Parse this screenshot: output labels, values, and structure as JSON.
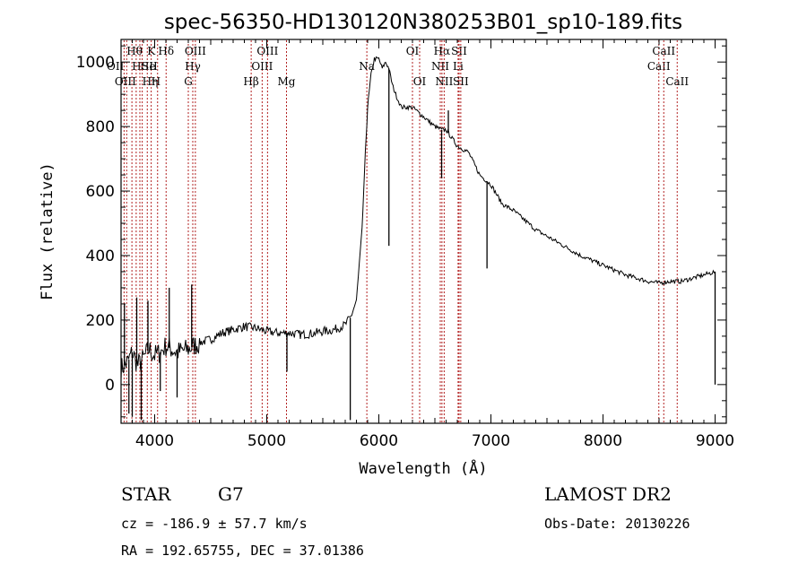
{
  "chart_data": {
    "type": "line",
    "title": "spec-56350-HD130120N380253B01_sp10-189.fits",
    "xlabel": "Wavelength (Å)",
    "ylabel": "Flux (relative)",
    "xlim": [
      3700,
      9100
    ],
    "ylim": [
      -120,
      1070
    ],
    "xticks": [
      4000,
      5000,
      6000,
      7000,
      8000,
      9000
    ],
    "yticks": [
      0,
      200,
      400,
      600,
      800,
      1000
    ],
    "series": [
      {
        "x": [
          3700,
          3760,
          3800,
          3850,
          3900,
          3950,
          4000,
          4050,
          4100,
          4200,
          4300,
          4400,
          4500,
          4600,
          4700,
          4800,
          4900,
          5000,
          5100,
          5200,
          5300,
          5400,
          5500,
          5600,
          5700,
          5750,
          5800,
          5850,
          5880,
          5900,
          5930,
          5960,
          6000,
          6030,
          6060,
          6090,
          6120,
          6150,
          6200,
          6300,
          6400,
          6500,
          6560,
          6600,
          6700,
          6800,
          6900,
          7000,
          7100,
          7200,
          7400,
          7600,
          7800,
          8000,
          8200,
          8400,
          8500,
          8600,
          8700,
          8800,
          8900,
          8950,
          9000
        ],
        "values": [
          50,
          70,
          100,
          60,
          80,
          110,
          90,
          100,
          120,
          100,
          110,
          130,
          140,
          160,
          170,
          180,
          175,
          165,
          160,
          160,
          155,
          158,
          165,
          170,
          185,
          210,
          260,
          480,
          720,
          860,
          960,
          1010,
          1010,
          980,
          1000,
          980,
          930,
          900,
          860,
          860,
          830,
          800,
          790,
          790,
          740,
          720,
          650,
          620,
          560,
          540,
          480,
          440,
          400,
          370,
          340,
          320,
          315,
          320,
          320,
          330,
          340,
          345,
          350
        ]
      }
    ],
    "spikes": [
      {
        "x": 3730,
        "y": 250
      },
      {
        "x": 3770,
        "y": -90
      },
      {
        "x": 3800,
        "y": -100
      },
      {
        "x": 3840,
        "y": 270
      },
      {
        "x": 3880,
        "y": -110
      },
      {
        "x": 3940,
        "y": 260
      },
      {
        "x": 4050,
        "y": -20
      },
      {
        "x": 4130,
        "y": 300
      },
      {
        "x": 4200,
        "y": -40
      },
      {
        "x": 4330,
        "y": 310
      },
      {
        "x": 5180,
        "y": 40
      },
      {
        "x": 5745,
        "y": -110
      },
      {
        "x": 6090,
        "y": 430
      },
      {
        "x": 6560,
        "y": 640
      },
      {
        "x": 6620,
        "y": 850
      },
      {
        "x": 6965,
        "y": 360
      },
      {
        "x": 9000,
        "y": 0
      }
    ],
    "spectral_lines": [
      {
        "x": 3727,
        "label": "OII",
        "row": 1,
        "align": "end"
      },
      {
        "x": 3750,
        "label": "Hθ",
        "row": 0,
        "align": "start"
      },
      {
        "x": 3797,
        "label": "H",
        "row": 1,
        "align": "start"
      },
      {
        "x": 3835,
        "label": "OIII",
        "row": 2,
        "align": "end"
      },
      {
        "x": 3868,
        "label": "He",
        "row": 1,
        "align": "start"
      },
      {
        "x": 3889,
        "label": "Hη",
        "row": 2,
        "align": "start"
      },
      {
        "x": 3934,
        "label": "K",
        "row": 0,
        "align": "start"
      },
      {
        "x": 3969,
        "label": "H",
        "row": 2,
        "align": "start"
      },
      {
        "x": 4026,
        "label": "SII",
        "row": 1,
        "align": "end"
      },
      {
        "x": 4102,
        "label": "Hδ",
        "row": 0,
        "align": "middle"
      },
      {
        "x": 4300,
        "label": "G",
        "row": 2,
        "align": "middle"
      },
      {
        "x": 4340,
        "label": "Hγ",
        "row": 1,
        "align": "middle"
      },
      {
        "x": 4363,
        "label": "OIII",
        "row": 0,
        "align": "middle"
      },
      {
        "x": 4861,
        "label": "Hβ",
        "row": 2,
        "align": "middle"
      },
      {
        "x": 4959,
        "label": "OIII",
        "row": 1,
        "align": "middle"
      },
      {
        "x": 5007,
        "label": "OIII",
        "row": 0,
        "align": "middle"
      },
      {
        "x": 5176,
        "label": "Mg",
        "row": 2,
        "align": "middle"
      },
      {
        "x": 5893,
        "label": "Na",
        "row": 1,
        "align": "middle"
      },
      {
        "x": 6300,
        "label": "OI",
        "row": 0,
        "align": "middle"
      },
      {
        "x": 6364,
        "label": "OI",
        "row": 2,
        "align": "middle"
      },
      {
        "x": 6548,
        "label": "NII",
        "row": 1,
        "align": "middle"
      },
      {
        "x": 6563,
        "label": "Hα",
        "row": 0,
        "align": "middle"
      },
      {
        "x": 6583,
        "label": "NII",
        "row": 2,
        "align": "middle"
      },
      {
        "x": 6707,
        "label": "Li",
        "row": 1,
        "align": "middle"
      },
      {
        "x": 6716,
        "label": "SII",
        "row": 0,
        "align": "middle"
      },
      {
        "x": 6731,
        "label": "SII",
        "row": 2,
        "align": "middle"
      },
      {
        "x": 8498,
        "label": "CaII",
        "row": 1,
        "align": "middle"
      },
      {
        "x": 8542,
        "label": "CaII",
        "row": 0,
        "align": "middle"
      },
      {
        "x": 8662,
        "label": "CaII",
        "row": 2,
        "align": "middle"
      }
    ]
  },
  "info": {
    "object_class": "STAR",
    "subclass": "G7",
    "survey": "LAMOST DR2",
    "cz": "cz = -186.9 ± 57.7 km/s",
    "obs_date": "Obs-Date: 20130226",
    "coords": "RA = 192.65755, DEC =  37.01386"
  },
  "colors": {
    "spectrum": "#000000",
    "line_marker": "#b22222",
    "frame": "#000000"
  }
}
